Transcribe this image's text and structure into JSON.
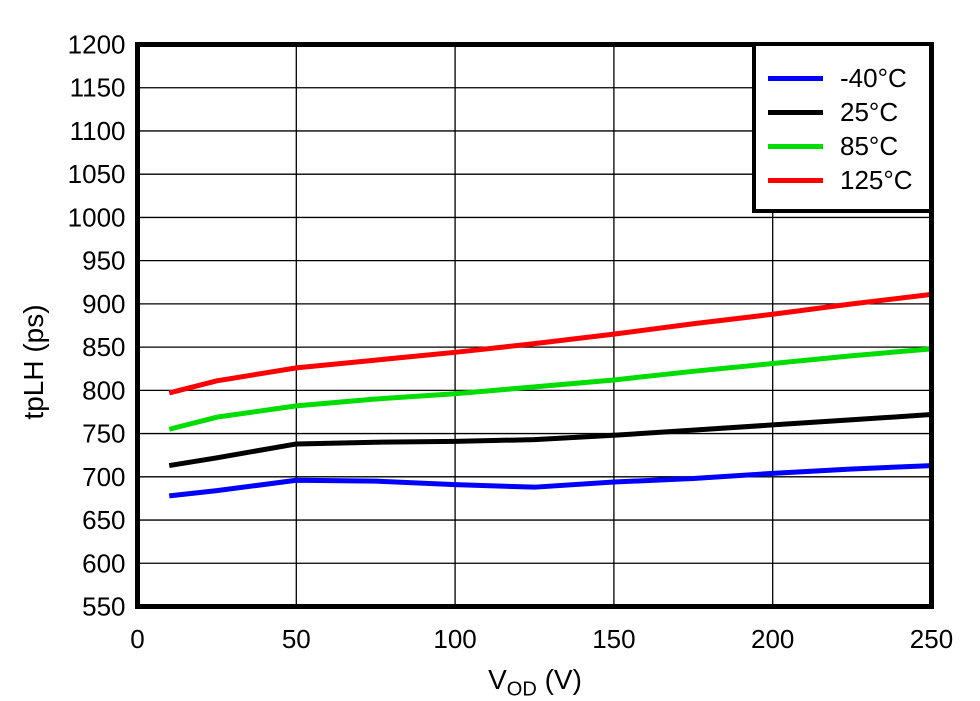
{
  "chart_data": {
    "type": "line",
    "title": "",
    "ylabel": "tpLH (ps)",
    "xlabel": {
      "base": "V",
      "sub": "OD",
      "suffix": " (V)"
    },
    "xlim": [
      0,
      250
    ],
    "ylim": [
      550,
      1200
    ],
    "x_ticks": [
      0,
      50,
      100,
      150,
      200,
      250
    ],
    "y_ticks": [
      550,
      600,
      650,
      700,
      750,
      800,
      850,
      900,
      950,
      1000,
      1050,
      1100,
      1150,
      1200
    ],
    "grid": true,
    "grid_color": "#000000",
    "axis_color": "#000000",
    "legend_position": "top-right",
    "x": [
      10,
      25,
      50,
      75,
      100,
      125,
      150,
      175,
      200,
      225,
      250
    ],
    "series": [
      {
        "name": "-40°C",
        "color": "#0000ff",
        "values": [
          678,
          684,
          696,
          695,
          691,
          688,
          694,
          698,
          704,
          709,
          713
        ]
      },
      {
        "name": "25°C",
        "color": "#000000",
        "values": [
          713,
          722,
          738,
          740,
          741,
          743,
          748,
          754,
          760,
          766,
          772
        ]
      },
      {
        "name": "85°C",
        "color": "#00dd00",
        "values": [
          755,
          769,
          782,
          790,
          796,
          804,
          812,
          822,
          831,
          840,
          848
        ]
      },
      {
        "name": "125°C",
        "color": "#ff0000",
        "values": [
          797,
          811,
          826,
          835,
          844,
          854,
          865,
          877,
          888,
          900,
          911
        ]
      }
    ]
  }
}
